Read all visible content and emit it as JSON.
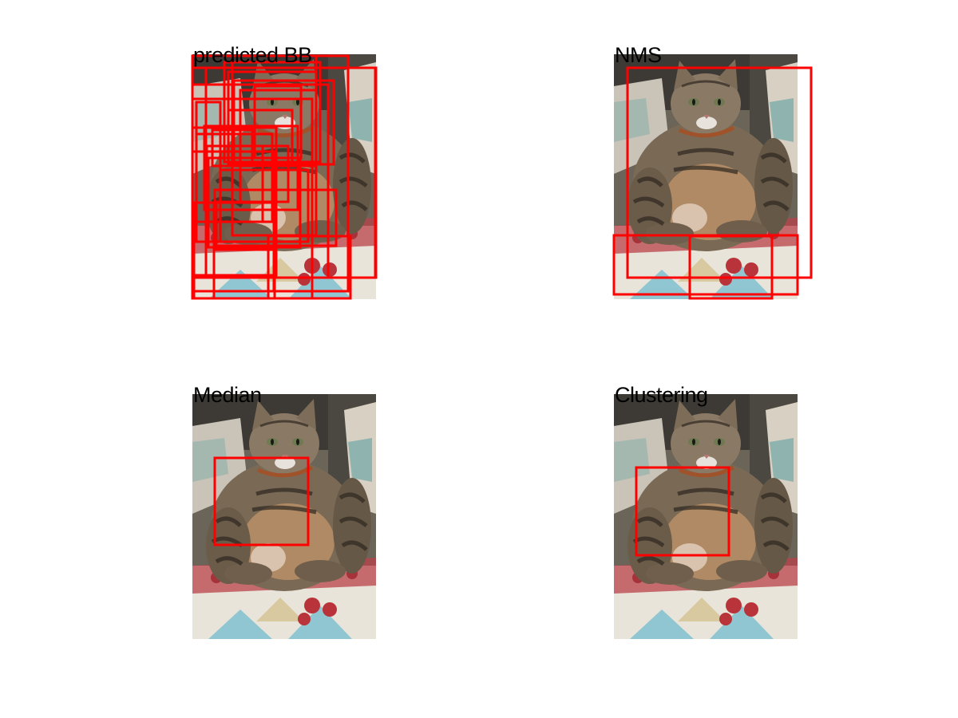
{
  "figure": {
    "panels": [
      {
        "title": "predicted BB",
        "image": "tabby-cat-on-quilt-photo",
        "box_color": "#ff0000"
      },
      {
        "title": "NMS",
        "image": "tabby-cat-on-quilt-photo",
        "box_color": "#ff0000"
      },
      {
        "title": "Median",
        "image": "tabby-cat-on-quilt-photo",
        "box_color": "#ff0000"
      },
      {
        "title": "Clustering",
        "image": "tabby-cat-on-quilt-photo",
        "box_color": "#ff0000"
      }
    ]
  }
}
